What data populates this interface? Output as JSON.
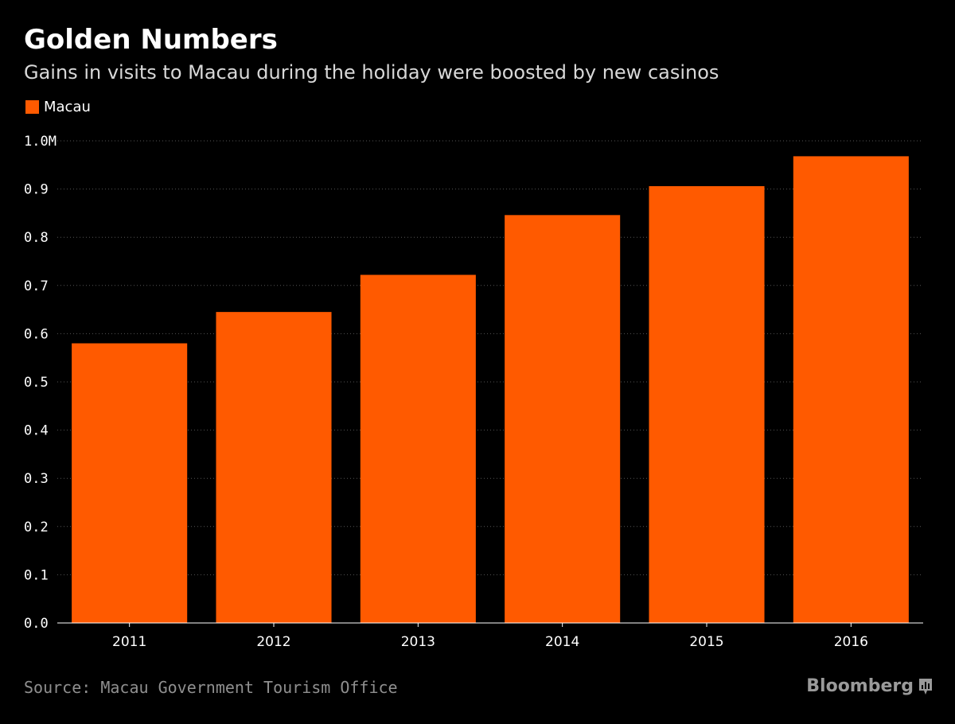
{
  "header": {
    "title": "Golden Numbers",
    "subtitle": "Gains in visits to Macau during the holiday were boosted by new casinos"
  },
  "legend": {
    "label": "Macau"
  },
  "footer": {
    "source": "Source: Macau Government Tourism Office",
    "brand": "Bloomberg",
    "brand_icon": "bloomberg-chart-icon"
  },
  "colors": {
    "bar": "#ff5a00",
    "background": "#000000",
    "grid": "#555555"
  },
  "chart_data": {
    "type": "bar",
    "title": "Golden Numbers",
    "subtitle": "Gains in visits to Macau during the holiday were boosted by new casinos",
    "categories": [
      "2011",
      "2012",
      "2013",
      "2014",
      "2015",
      "2016"
    ],
    "series": [
      {
        "name": "Macau",
        "values": [
          0.58,
          0.645,
          0.722,
          0.846,
          0.906,
          0.968
        ]
      }
    ],
    "ylim": [
      0,
      1.0
    ],
    "yticks": [
      0.0,
      0.1,
      0.2,
      0.3,
      0.4,
      0.5,
      0.6,
      0.7,
      0.8,
      0.9,
      1.0
    ],
    "ytick_labels": [
      "0.0",
      "0.1",
      "0.2",
      "0.3",
      "0.4",
      "0.5",
      "0.6",
      "0.7",
      "0.8",
      "0.9",
      "1.0M"
    ],
    "xlabel": "",
    "ylabel": "",
    "grid": true,
    "legend_position": "top-left"
  }
}
